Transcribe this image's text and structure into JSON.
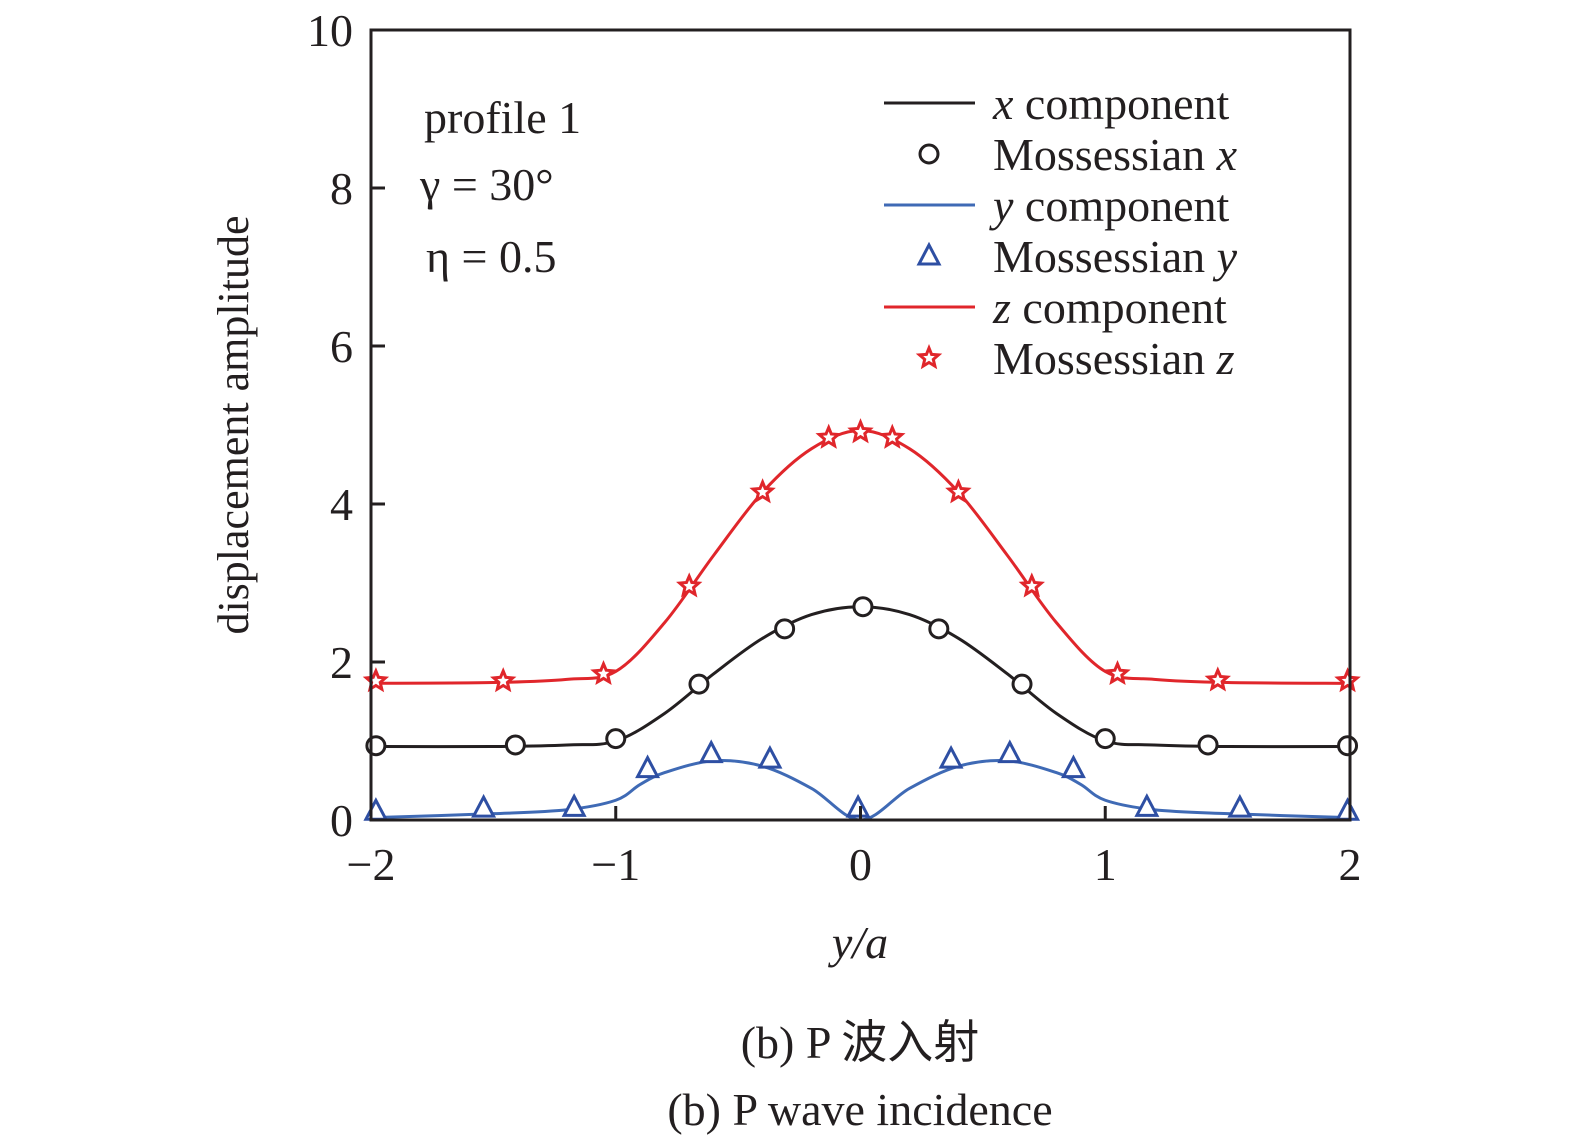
{
  "chart_data": {
    "type": "line",
    "xlabel": "y/a",
    "ylabel": "displacement amplitude",
    "xlim": [
      -2,
      2
    ],
    "ylim": [
      0,
      10
    ],
    "xticks": [
      -2,
      -1,
      0,
      1,
      2
    ],
    "xtick_labels": [
      "−2",
      "−1",
      "0",
      "1",
      "2"
    ],
    "yticks": [
      0,
      2,
      4,
      6,
      8,
      10
    ],
    "ytick_labels": [
      "0",
      "2",
      "4",
      "6",
      "8",
      "10"
    ],
    "grid": false,
    "legend_position": "top-right",
    "annotations": [
      "profile 1",
      "γ = 30°",
      "η = 0.5"
    ],
    "captions": [
      "(b) P 波入射",
      "(b) P wave incidence"
    ],
    "series": [
      {
        "name": "x component",
        "kind": "line",
        "color": "#231f20",
        "x": [
          -2,
          -1.5,
          -1.2,
          -1,
          -0.8,
          -0.6,
          -0.4,
          -0.2,
          0,
          0.2,
          0.4,
          0.6,
          0.8,
          1,
          1.2,
          1.5,
          2
        ],
        "y": [
          0.93,
          0.93,
          0.95,
          1.0,
          1.35,
          1.85,
          2.3,
          2.6,
          2.7,
          2.6,
          2.3,
          1.85,
          1.35,
          1.0,
          0.95,
          0.93,
          0.93
        ]
      },
      {
        "name": "Mossessian x",
        "kind": "marker",
        "marker": "circle",
        "color": "#231f20",
        "x": [
          -1.98,
          -1.41,
          -1.0,
          -0.66,
          -0.31,
          0.01,
          0.32,
          0.66,
          1.0,
          1.42,
          1.99
        ],
        "y": [
          0.94,
          0.95,
          1.03,
          1.72,
          2.42,
          2.7,
          2.42,
          1.72,
          1.03,
          0.95,
          0.94
        ]
      },
      {
        "name": "y component",
        "kind": "line",
        "color": "#3f6ab5",
        "x": [
          -2,
          -1.5,
          -1.2,
          -1,
          -0.9,
          -0.8,
          -0.6,
          -0.4,
          -0.2,
          0,
          0.2,
          0.4,
          0.6,
          0.8,
          0.9,
          1,
          1.2,
          1.5,
          2
        ],
        "y": [
          0.03,
          0.08,
          0.13,
          0.25,
          0.45,
          0.6,
          0.75,
          0.68,
          0.4,
          0,
          0.4,
          0.68,
          0.75,
          0.6,
          0.45,
          0.25,
          0.13,
          0.08,
          0.03
        ]
      },
      {
        "name": "Mossessian y",
        "kind": "marker",
        "marker": "triangle",
        "color": "#2e4fa3",
        "x": [
          -1.98,
          -1.54,
          -1.17,
          -0.87,
          -0.61,
          -0.37,
          -0.01,
          0.37,
          0.61,
          0.87,
          1.17,
          1.55,
          1.99
        ],
        "y": [
          0.11,
          0.15,
          0.16,
          0.65,
          0.84,
          0.77,
          0.15,
          0.77,
          0.84,
          0.65,
          0.16,
          0.15,
          0.11
        ]
      },
      {
        "name": "z component",
        "kind": "line",
        "color": "#e0262b",
        "x": [
          -2,
          -1.5,
          -1.2,
          -1,
          -0.8,
          -0.6,
          -0.4,
          -0.2,
          0,
          0.2,
          0.4,
          0.6,
          0.8,
          1,
          1.2,
          1.5,
          2
        ],
        "y": [
          1.73,
          1.74,
          1.78,
          1.88,
          2.5,
          3.35,
          4.15,
          4.7,
          4.93,
          4.7,
          4.15,
          3.35,
          2.5,
          1.88,
          1.78,
          1.74,
          1.73
        ]
      },
      {
        "name": "Mossessian z",
        "kind": "marker",
        "marker": "star",
        "color": "#e0262b",
        "x": [
          -1.98,
          -1.46,
          -1.05,
          -0.7,
          -0.4,
          -0.13,
          0,
          0.13,
          0.4,
          0.7,
          1.05,
          1.46,
          1.99
        ],
        "y": [
          1.76,
          1.76,
          1.85,
          2.96,
          4.15,
          4.84,
          4.91,
          4.84,
          4.15,
          2.96,
          1.85,
          1.77,
          1.76
        ]
      }
    ]
  }
}
